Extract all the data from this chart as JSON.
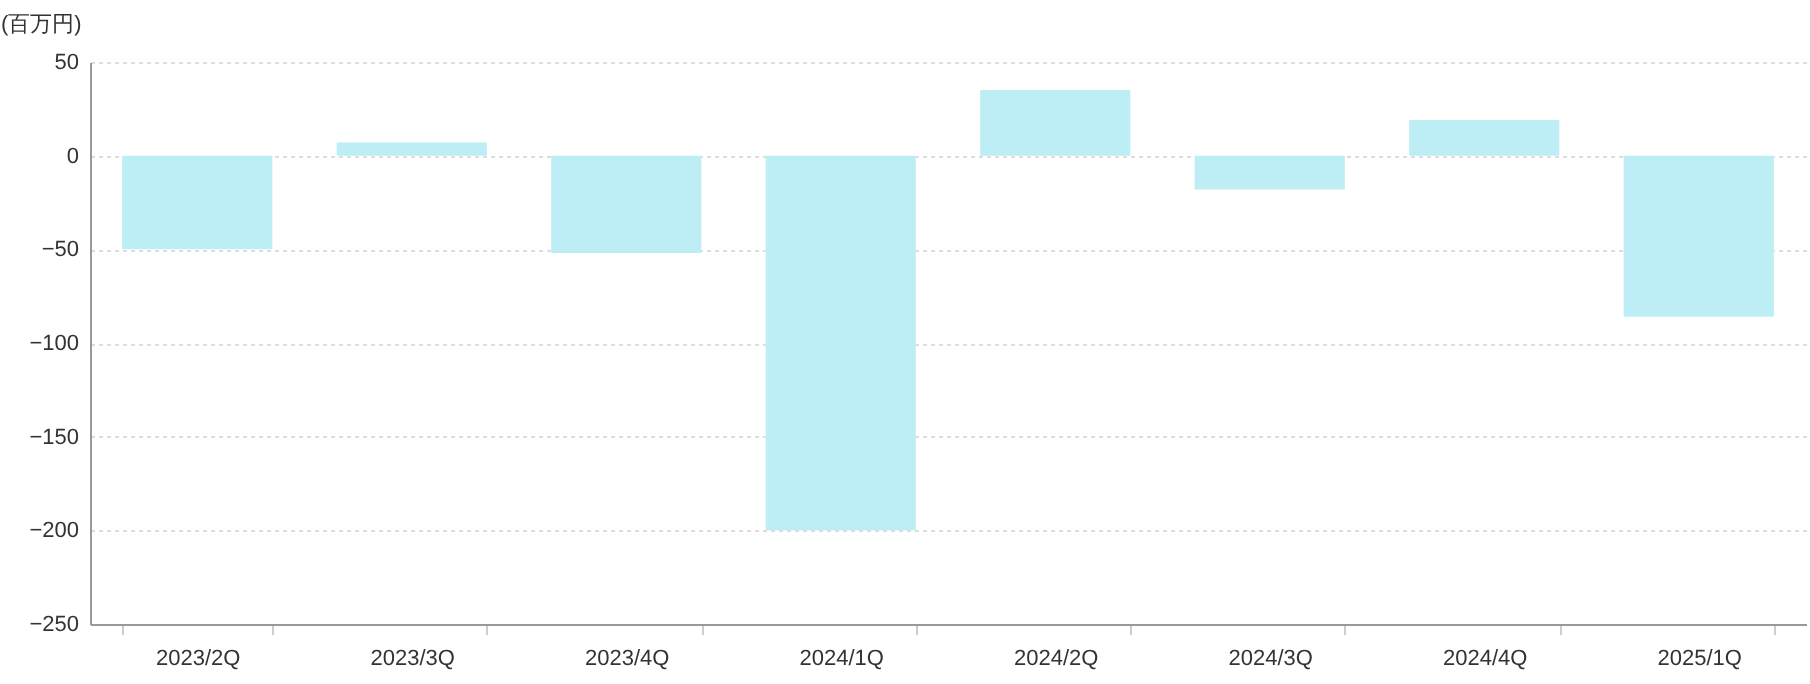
{
  "chart_data": {
    "type": "bar",
    "ylabel": "(百万円)",
    "categories": [
      "2023/2Q",
      "2023/3Q",
      "2023/4Q",
      "2024/1Q",
      "2024/2Q",
      "2024/3Q",
      "2024/4Q",
      "2025/1Q"
    ],
    "series": [
      {
        "color": "#bdeef5",
        "values": [
          -50,
          7,
          -52,
          -200,
          35,
          -18,
          19,
          -86
        ]
      }
    ],
    "ylim": [
      -250,
      50
    ],
    "yticks": [
      -250,
      -200,
      -150,
      -100,
      -50,
      0,
      50
    ],
    "grid": "y",
    "legend": false
  }
}
